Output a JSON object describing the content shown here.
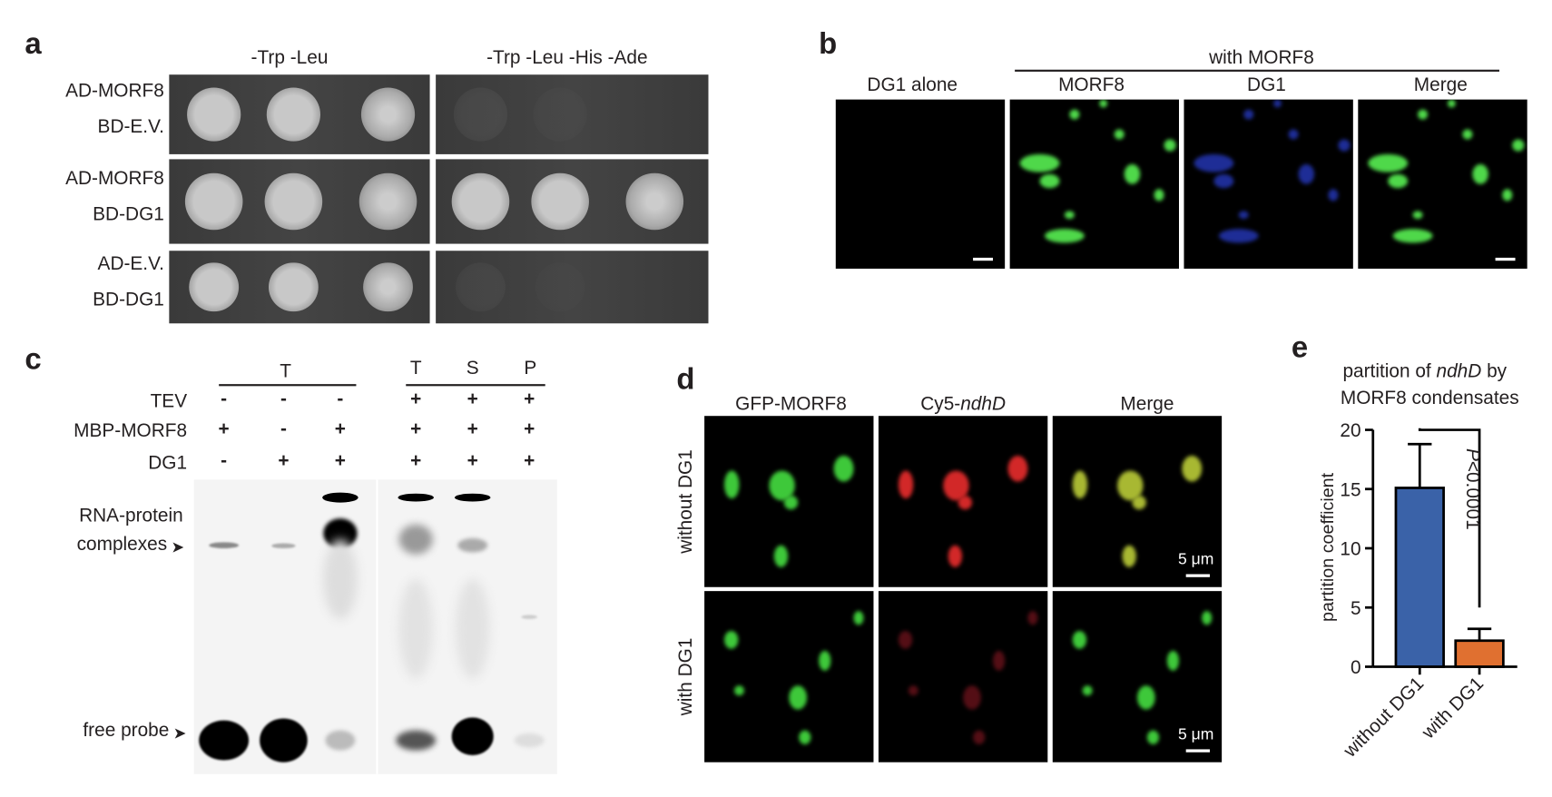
{
  "panel_a": {
    "label": "a",
    "media": [
      "-Trp -Leu",
      "-Trp -Leu -His -Ade"
    ],
    "rows": [
      {
        "line1": "AD-MORF8",
        "line2": "BD-E.V."
      },
      {
        "line1": "AD-MORF8",
        "line2": "BD-DG1"
      },
      {
        "line1": "AD-E.V.",
        "line2": "BD-DG1"
      }
    ]
  },
  "panel_b": {
    "label": "b",
    "group_label": "with MORF8",
    "columns": [
      "DG1 alone",
      "MORF8",
      "DG1",
      "Merge"
    ]
  },
  "panel_c": {
    "label": "c",
    "group1": "T",
    "group2": [
      "T",
      "S",
      "P"
    ],
    "rows": [
      {
        "name": "TEV",
        "values": [
          "-",
          "-",
          "-",
          "+",
          "+",
          "+"
        ]
      },
      {
        "name": "MBP-MORF8",
        "values": [
          "+",
          "-",
          "+",
          "+",
          "+",
          "+"
        ]
      },
      {
        "name": "DG1",
        "values": [
          "-",
          "+",
          "+",
          "+",
          "+",
          "+"
        ]
      }
    ],
    "arrow_labels": {
      "complex_line1": "RNA-protein",
      "complex_line2": "complexes",
      "free": "free probe"
    }
  },
  "panel_d": {
    "label": "d",
    "columns": [
      "GFP-MORF8",
      "Cy5-",
      "Merge"
    ],
    "columns_italic": [
      "",
      "ndhD",
      ""
    ],
    "rows": [
      "without DG1",
      "with DG1"
    ],
    "scale_bar": "5 μm"
  },
  "panel_e": {
    "label": "e",
    "title_pre": "partition of ",
    "title_italic": "ndhD",
    "title_post": " by",
    "title_line2": "MORF8 condensates",
    "pvalue_italic": "P",
    "pvalue_rest": "<0.0001"
  },
  "chart_data": {
    "type": "bar",
    "categories": [
      "without DG1",
      "with DG1"
    ],
    "values": [
      15.1,
      2.2
    ],
    "error_upper": [
      18.8,
      3.2
    ],
    "colors": [
      "#3a62a8",
      "#e07030"
    ],
    "ylabel": "partition coefficient",
    "ylim": [
      0,
      20
    ],
    "yticks": [
      0,
      5,
      10,
      15,
      20
    ],
    "annotation": "P<0.0001",
    "grid": false
  }
}
